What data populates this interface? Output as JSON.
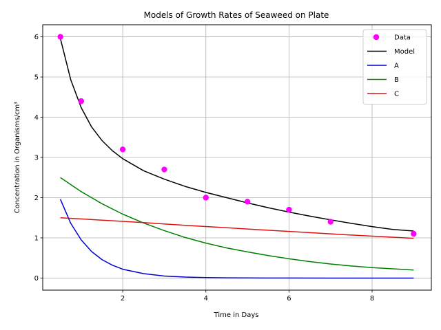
{
  "chart_data": {
    "type": "line",
    "title": "Models of Growth Rates of Seaweed on Plate",
    "xlabel": "Time in Days",
    "ylabel": "Concentration in Organisms/cm³",
    "xlim": [
      0.075,
      9.425
    ],
    "ylim": [
      -0.3,
      6.3
    ],
    "xticks": [
      2,
      4,
      6,
      8
    ],
    "yticks": [
      0,
      1,
      2,
      3,
      4,
      5,
      6
    ],
    "grid": true,
    "legend_position": "top-right",
    "scatter": {
      "name": "Data",
      "color": "#ff00ff",
      "x": [
        0.5,
        1,
        2,
        3,
        4,
        5,
        6,
        7,
        9
      ],
      "y": [
        6.0,
        4.4,
        3.2,
        2.7,
        2.0,
        1.9,
        1.7,
        1.4,
        1.1
      ]
    },
    "series": [
      {
        "name": "Model",
        "color": "#000000",
        "x": [
          0.5,
          0.75,
          1.0,
          1.25,
          1.5,
          1.75,
          2.0,
          2.5,
          3.0,
          3.5,
          4.0,
          4.5,
          5.0,
          5.5,
          6.0,
          6.5,
          7.0,
          7.5,
          8.0,
          8.5,
          9.0
        ],
        "y": [
          5.96,
          4.93,
          4.24,
          3.76,
          3.42,
          3.17,
          2.97,
          2.67,
          2.46,
          2.28,
          2.13,
          2.0,
          1.87,
          1.75,
          1.64,
          1.54,
          1.45,
          1.36,
          1.28,
          1.21,
          1.17
        ]
      },
      {
        "name": "A",
        "color": "#0000cc",
        "x": [
          0.5,
          0.75,
          1.0,
          1.25,
          1.5,
          1.75,
          2.0,
          2.5,
          3.0,
          3.5,
          4.0,
          4.5,
          5.0,
          6.0,
          7.0,
          8.0,
          9.0
        ],
        "y": [
          1.96,
          1.36,
          0.95,
          0.66,
          0.46,
          0.32,
          0.22,
          0.11,
          0.05,
          0.025,
          0.012,
          0.006,
          0.003,
          0.001,
          0.0,
          0.0,
          0.0
        ]
      },
      {
        "name": "B",
        "color": "#008000",
        "x": [
          0.5,
          1.0,
          1.5,
          2.0,
          2.5,
          3.0,
          3.5,
          4.0,
          4.5,
          5.0,
          5.5,
          6.0,
          6.5,
          7.0,
          7.5,
          8.0,
          8.5,
          9.0
        ],
        "y": [
          2.5,
          2.15,
          1.85,
          1.59,
          1.37,
          1.18,
          1.01,
          0.87,
          0.75,
          0.65,
          0.56,
          0.48,
          0.41,
          0.35,
          0.3,
          0.26,
          0.23,
          0.2
        ]
      },
      {
        "name": "C",
        "color": "#dd1111",
        "x": [
          0.5,
          1.5,
          2.5,
          3.5,
          4.5,
          5.5,
          6.5,
          7.5,
          9.0
        ],
        "y": [
          1.5,
          1.44,
          1.38,
          1.31,
          1.25,
          1.19,
          1.13,
          1.07,
          0.99
        ]
      }
    ]
  }
}
